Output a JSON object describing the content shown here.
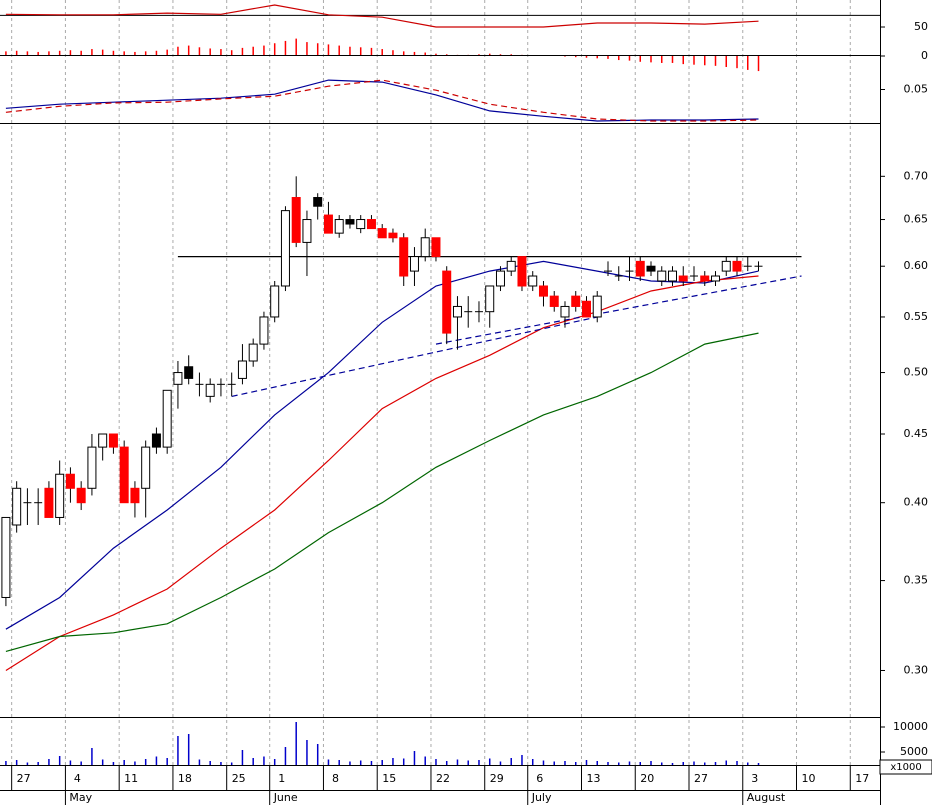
{
  "chart_data": [
    {
      "type": "oscillator",
      "ylim": [
        -27.6,
        96.6
      ],
      "yticks": [
        50,
        0
      ],
      "levels": [
        70
      ],
      "level_color": "#000000",
      "line": {
        "color": "#cc0000",
        "x": [
          0,
          5,
          10,
          15,
          20,
          25,
          30,
          35,
          40,
          45,
          50,
          55,
          60,
          65,
          70
        ],
        "values": [
          72,
          71,
          71,
          74,
          72,
          88,
          71,
          67,
          50,
          50,
          50,
          57,
          57,
          55,
          60
        ]
      },
      "bars": {
        "color": "#ff0000",
        "values": [
          8,
          9,
          8,
          7,
          8,
          9,
          10,
          9,
          12,
          11,
          9,
          8,
          7,
          8,
          9,
          11,
          16,
          18,
          15,
          13,
          12,
          10,
          14,
          16,
          18,
          22,
          26,
          30,
          24,
          22,
          20,
          18,
          16,
          15,
          14,
          12,
          10,
          8,
          7,
          6,
          4,
          3,
          2,
          2,
          3,
          4,
          3,
          3,
          2,
          1,
          1,
          0,
          -1,
          -2,
          -3,
          -4,
          -5,
          -7,
          -8,
          -10,
          -11,
          -12,
          -12,
          -14,
          -15,
          -16,
          -17,
          -19,
          -21,
          -24,
          -26
        ]
      }
    },
    {
      "type": "line",
      "ylim": [
        0,
        0.1
      ],
      "yticks": [
        0.05
      ],
      "series": [
        {
          "color": "#000099",
          "dashed": false,
          "x": [
            0,
            5,
            10,
            15,
            20,
            25,
            30,
            35,
            40,
            45,
            50,
            55,
            60,
            65,
            70
          ],
          "values": [
            0.022,
            0.028,
            0.031,
            0.034,
            0.037,
            0.043,
            0.064,
            0.061,
            0.042,
            0.018,
            0.01,
            0.003,
            0.0045,
            0.0045,
            0.006
          ]
        },
        {
          "color": "#cc0000",
          "dashed": true,
          "x": [
            0,
            5,
            10,
            15,
            20,
            25,
            30,
            35,
            40,
            45,
            50,
            55,
            60,
            65,
            70
          ],
          "values": [
            0.016,
            0.025,
            0.03,
            0.031,
            0.036,
            0.04,
            0.055,
            0.064,
            0.049,
            0.028,
            0.016,
            0.006,
            0.003,
            0.003,
            0.0045
          ]
        }
      ]
    },
    {
      "type": "candlestick",
      "log": true,
      "ylim": [
        0.277,
        0.767
      ],
      "yticks": [
        {
          "value": 0.7,
          "label": "0.70"
        },
        0.65,
        {
          "value": 0.6,
          "label": "0.60"
        },
        0.55,
        {
          "value": 0.5,
          "label": "0.50"
        },
        0.45,
        {
          "value": 0.4,
          "label": "0.40"
        },
        0.35,
        {
          "value": 0.3,
          "label": "0.30"
        }
      ],
      "xlim": [
        -0.55,
        81.3
      ],
      "xticks": [
        {
          "value": 1,
          "label": "27"
        },
        {
          "value": 6,
          "label": "4"
        },
        {
          "value": 11,
          "label": "11"
        },
        {
          "value": 16,
          "label": "18"
        },
        {
          "value": 21,
          "label": "25"
        },
        {
          "value": 25,
          "label": "1"
        },
        {
          "value": 30,
          "label": "8"
        },
        {
          "value": 35,
          "label": "15"
        },
        {
          "value": 40,
          "label": "22"
        },
        {
          "value": 45,
          "label": "29"
        },
        {
          "value": 49,
          "label": "6"
        },
        {
          "value": 54,
          "label": "13"
        },
        {
          "value": 59,
          "label": "20"
        },
        {
          "value": 64,
          "label": "27"
        },
        {
          "value": 69,
          "label": "3"
        },
        {
          "value": 74,
          "label": "10"
        },
        {
          "value": 79,
          "label": "17"
        }
      ],
      "months": [
        {
          "value": 6,
          "label": "May"
        },
        {
          "value": 25,
          "label": "June"
        },
        {
          "value": 49,
          "label": "July"
        },
        {
          "value": 69,
          "label": "August"
        }
      ],
      "open": [
        0.34,
        0.385,
        0.4,
        0.4,
        0.41,
        0.39,
        0.42,
        0.41,
        0.41,
        0.44,
        0.45,
        0.44,
        0.41,
        0.41,
        0.45,
        0.44,
        0.49,
        0.505,
        0.49,
        0.48,
        0.49,
        0.49,
        0.495,
        0.51,
        0.525,
        0.55,
        0.58,
        0.675,
        0.625,
        0.675,
        0.655,
        0.635,
        0.65,
        0.64,
        0.65,
        0.64,
        0.635,
        0.63,
        0.595,
        0.61,
        0.63,
        0.595,
        0.55,
        0.555,
        0.555,
        0.555,
        0.58,
        0.595,
        0.61,
        0.58,
        0.58,
        0.57,
        0.55,
        0.57,
        0.565,
        0.55,
        0.595,
        0.59,
        0.595,
        0.605,
        0.6,
        0.585,
        0.585,
        0.59,
        0.59,
        0.59,
        0.585,
        0.595,
        0.605,
        0.6,
        0.6
      ],
      "high": [
        0.39,
        0.415,
        0.41,
        0.41,
        0.415,
        0.43,
        0.425,
        0.415,
        0.45,
        0.45,
        0.45,
        0.445,
        0.415,
        0.445,
        0.455,
        0.485,
        0.51,
        0.515,
        0.5,
        0.495,
        0.495,
        0.5,
        0.525,
        0.53,
        0.555,
        0.585,
        0.665,
        0.7,
        0.66,
        0.68,
        0.67,
        0.655,
        0.655,
        0.655,
        0.655,
        0.645,
        0.64,
        0.635,
        0.62,
        0.64,
        0.63,
        0.6,
        0.57,
        0.57,
        0.565,
        0.58,
        0.6,
        0.61,
        0.61,
        0.595,
        0.585,
        0.575,
        0.565,
        0.575,
        0.57,
        0.575,
        0.605,
        0.6,
        0.61,
        0.61,
        0.605,
        0.6,
        0.6,
        0.6,
        0.6,
        0.595,
        0.595,
        0.61,
        0.61,
        0.61,
        0.605
      ],
      "low": [
        0.335,
        0.38,
        0.385,
        0.385,
        0.39,
        0.385,
        0.4,
        0.395,
        0.405,
        0.43,
        0.435,
        0.4,
        0.39,
        0.39,
        0.435,
        0.435,
        0.47,
        0.49,
        0.48,
        0.475,
        0.48,
        0.48,
        0.49,
        0.505,
        0.52,
        0.545,
        0.575,
        0.62,
        0.59,
        0.65,
        0.635,
        0.63,
        0.64,
        0.635,
        0.64,
        0.63,
        0.625,
        0.58,
        0.58,
        0.605,
        0.605,
        0.525,
        0.52,
        0.54,
        0.545,
        0.54,
        0.575,
        0.59,
        0.575,
        0.575,
        0.56,
        0.555,
        0.54,
        0.555,
        0.55,
        0.545,
        0.59,
        0.585,
        0.585,
        0.585,
        0.59,
        0.58,
        0.58,
        0.58,
        0.585,
        0.58,
        0.58,
        0.59,
        0.59,
        0.595,
        0.595
      ],
      "close": [
        0.39,
        0.41,
        0.4,
        0.4,
        0.39,
        0.42,
        0.41,
        0.4,
        0.44,
        0.45,
        0.44,
        0.4,
        0.4,
        0.44,
        0.44,
        0.485,
        0.5,
        0.495,
        0.49,
        0.49,
        0.49,
        0.49,
        0.51,
        0.525,
        0.55,
        0.58,
        0.66,
        0.625,
        0.65,
        0.665,
        0.635,
        0.65,
        0.645,
        0.65,
        0.64,
        0.63,
        0.63,
        0.59,
        0.61,
        0.63,
        0.61,
        0.535,
        0.56,
        0.555,
        0.555,
        0.58,
        0.595,
        0.605,
        0.58,
        0.59,
        0.57,
        0.56,
        0.56,
        0.56,
        0.55,
        0.57,
        0.595,
        0.59,
        0.595,
        0.59,
        0.595,
        0.595,
        0.595,
        0.585,
        0.59,
        0.585,
        0.59,
        0.605,
        0.595,
        0.6,
        0.6
      ],
      "fills": [
        "#ffffff",
        "#ffffff",
        "#ffffff",
        "#ffffff",
        "#ff0000",
        "#ffffff",
        "#ff0000",
        "#ff0000",
        "#ffffff",
        "#ffffff",
        "#ff0000",
        "#ff0000",
        "#ff0000",
        "#ffffff",
        "#000000",
        "#ffffff",
        "#ffffff",
        "#000000",
        "#ffffff",
        "#ffffff",
        "#ffffff",
        "#ffffff",
        "#ffffff",
        "#ffffff",
        "#ffffff",
        "#ffffff",
        "#ffffff",
        "#ff0000",
        "#ffffff",
        "#000000",
        "#ff0000",
        "#ffffff",
        "#000000",
        "#ffffff",
        "#ff0000",
        "#ff0000",
        "#ff0000",
        "#ff0000",
        "#ffffff",
        "#ffffff",
        "#ff0000",
        "#ff0000",
        "#ffffff",
        "#ffffff",
        "#ffffff",
        "#ffffff",
        "#ffffff",
        "#ffffff",
        "#ff0000",
        "#ffffff",
        "#ff0000",
        "#ff0000",
        "#ffffff",
        "#ff0000",
        "#ff0000",
        "#ffffff",
        "#ffffff",
        "#ffffff",
        "#ffffff",
        "#ff0000",
        "#000000",
        "#ffffff",
        "#ffffff",
        "#ff0000",
        "#ffffff",
        "#ff0000",
        "#ffffff",
        "#ffffff",
        "#ff0000",
        "#ffffff",
        "#ffffff"
      ],
      "series": [
        {
          "color": "#000099",
          "x": [
            0,
            5,
            10,
            15,
            20,
            25,
            30,
            35,
            40,
            45,
            50,
            55,
            60,
            65,
            70
          ],
          "values": [
            0.322,
            0.34,
            0.37,
            0.395,
            0.425,
            0.465,
            0.5,
            0.545,
            0.58,
            0.595,
            0.605,
            0.595,
            0.585,
            0.583,
            0.595
          ]
        },
        {
          "color": "#dd0000",
          "x": [
            0,
            5,
            10,
            15,
            20,
            25,
            30,
            35,
            40,
            45,
            50,
            55,
            60,
            65,
            70
          ],
          "values": [
            0.3,
            0.318,
            0.33,
            0.345,
            0.37,
            0.395,
            0.43,
            0.47,
            0.495,
            0.515,
            0.54,
            0.555,
            0.575,
            0.585,
            0.59
          ]
        },
        {
          "color": "#006600",
          "x": [
            0,
            5,
            10,
            15,
            20,
            25,
            30,
            35,
            40,
            45,
            50,
            55,
            60,
            65,
            70
          ],
          "values": [
            0.31,
            0.318,
            0.32,
            0.325,
            0.34,
            0.357,
            0.38,
            0.4,
            0.425,
            0.445,
            0.465,
            0.48,
            0.5,
            0.525,
            0.535
          ]
        }
      ],
      "trendlines": [
        {
          "color": "#000000",
          "dashed": false,
          "x": [
            16,
            74
          ],
          "values": [
            0.61,
            0.61
          ]
        },
        {
          "color": "#000099",
          "dashed": true,
          "x": [
            21,
            55
          ],
          "values": [
            0.48,
            0.55
          ]
        },
        {
          "color": "#000099",
          "dashed": true,
          "x": [
            40,
            74
          ],
          "values": [
            0.525,
            0.59
          ]
        }
      ]
    },
    {
      "type": "bar",
      "ylim": [
        2400,
        12000
      ],
      "yticks": [
        10000,
        5000
      ],
      "unit_label": "x1000",
      "color": "#0000cc",
      "values": [
        3200,
        3400,
        2900,
        3000,
        3600,
        4200,
        3300,
        3100,
        5800,
        3500,
        3000,
        3400,
        3100,
        3600,
        4100,
        3800,
        8200,
        8600,
        3500,
        3200,
        3000,
        2900,
        5400,
        3800,
        4100,
        3600,
        6000,
        11000,
        7400,
        6600,
        3500,
        3400,
        3100,
        3300,
        3200,
        3400,
        3800,
        3700,
        5200,
        4100,
        3600,
        3200,
        3500,
        3300,
        3400,
        3700,
        3100,
        3800,
        4400,
        3600,
        3300,
        3100,
        3200,
        3000,
        3400,
        3200,
        3000,
        2900,
        3100,
        3000,
        3200,
        2900,
        2800,
        3000,
        3100,
        2900,
        3000,
        3300,
        3200,
        2900,
        2800
      ]
    }
  ]
}
